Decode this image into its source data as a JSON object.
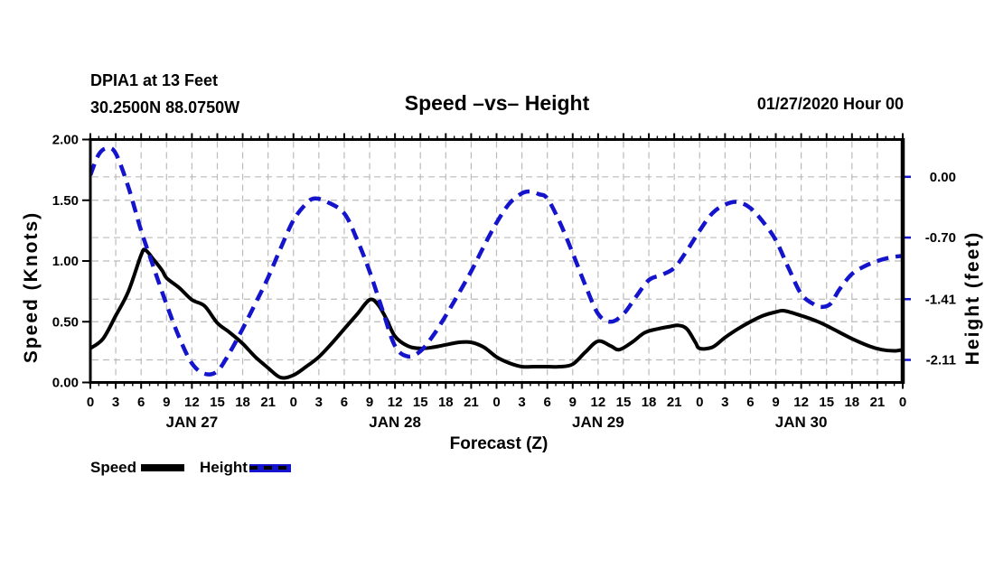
{
  "header": {
    "station_line1": "DPIA1 at 13 Feet",
    "station_line2": "30.2500N 88.0750W",
    "title": "Speed –vs– Height",
    "datetime": "01/27/2020 Hour 00"
  },
  "chart_data": {
    "type": "line",
    "title": "Speed –vs– Height",
    "xlabel": "Forecast (Z)",
    "grid": true,
    "grid_color": "#bbbbbb",
    "x_axis": {
      "hours_range": [
        0,
        96
      ],
      "major_tick_every_hours": 3,
      "minor_tick_every_hours": 1,
      "hour_tick_labels": [
        "0",
        "3",
        "6",
        "9",
        "12",
        "15",
        "18",
        "21",
        "0",
        "3",
        "6",
        "9",
        "12",
        "15",
        "18",
        "21",
        "0",
        "3",
        "6",
        "9",
        "12",
        "15",
        "18",
        "21",
        "0",
        "3",
        "6",
        "9",
        "12",
        "15",
        "18",
        "21",
        "0"
      ],
      "day_labels": [
        {
          "label": "JAN 27",
          "hour": 12
        },
        {
          "label": "JAN 28",
          "hour": 36
        },
        {
          "label": "JAN 29",
          "hour": 60
        },
        {
          "label": "JAN 30",
          "hour": 84
        }
      ]
    },
    "left_axis": {
      "label": "Speed (Knots)",
      "min": 0.0,
      "max": 2.0,
      "ticks": [
        {
          "value": 0.0,
          "label": "0.00"
        },
        {
          "value": 0.5,
          "label": "0.50"
        },
        {
          "value": 1.0,
          "label": "1.00"
        },
        {
          "value": 1.5,
          "label": "1.50"
        },
        {
          "value": 2.0,
          "label": "2.00"
        }
      ],
      "gridline_values": [
        0.5,
        1.0,
        1.5
      ],
      "tick_color": "#000000"
    },
    "right_axis": {
      "label": "Height (feet)",
      "min": -2.37,
      "max": 0.43,
      "ticks": [
        {
          "value": 0.0,
          "label": "0.00"
        },
        {
          "value": -0.7,
          "label": "-0.70"
        },
        {
          "value": -1.41,
          "label": "-1.41"
        },
        {
          "value": -2.11,
          "label": "-2.11"
        }
      ],
      "gridline_values": [
        0.0,
        -0.7,
        -1.41,
        -2.11
      ],
      "tick_color": "#1414cc"
    },
    "series": [
      {
        "name": "Speed",
        "axis": "left",
        "units": "knots",
        "color": "#000000",
        "style": "solid",
        "points": [
          [
            0,
            0.28
          ],
          [
            1.5,
            0.36
          ],
          [
            3,
            0.55
          ],
          [
            4.5,
            0.75
          ],
          [
            6,
            1.05
          ],
          [
            6.5,
            1.09
          ],
          [
            7.5,
            1.01
          ],
          [
            8.5,
            0.92
          ],
          [
            9,
            0.86
          ],
          [
            10.5,
            0.78
          ],
          [
            12,
            0.68
          ],
          [
            13.5,
            0.63
          ],
          [
            15,
            0.49
          ],
          [
            16.5,
            0.41
          ],
          [
            18,
            0.32
          ],
          [
            19.5,
            0.21
          ],
          [
            21,
            0.12
          ],
          [
            22.5,
            0.04
          ],
          [
            24,
            0.06
          ],
          [
            25.5,
            0.13
          ],
          [
            27,
            0.21
          ],
          [
            28.5,
            0.32
          ],
          [
            30,
            0.44
          ],
          [
            31.5,
            0.56
          ],
          [
            33,
            0.68
          ],
          [
            34,
            0.64
          ],
          [
            35,
            0.52
          ],
          [
            36,
            0.38
          ],
          [
            37.5,
            0.3
          ],
          [
            39,
            0.28
          ],
          [
            40.5,
            0.29
          ],
          [
            42,
            0.31
          ],
          [
            43.5,
            0.33
          ],
          [
            45,
            0.33
          ],
          [
            46.5,
            0.29
          ],
          [
            48,
            0.21
          ],
          [
            49.5,
            0.16
          ],
          [
            51,
            0.13
          ],
          [
            52.5,
            0.13
          ],
          [
            54,
            0.13
          ],
          [
            55.5,
            0.13
          ],
          [
            57,
            0.15
          ],
          [
            58.5,
            0.25
          ],
          [
            60,
            0.34
          ],
          [
            61.5,
            0.3
          ],
          [
            62.5,
            0.27
          ],
          [
            64,
            0.33
          ],
          [
            65.5,
            0.41
          ],
          [
            67,
            0.44
          ],
          [
            68.5,
            0.46
          ],
          [
            69.5,
            0.47
          ],
          [
            70.5,
            0.44
          ],
          [
            71.5,
            0.33
          ],
          [
            72,
            0.28
          ],
          [
            73.5,
            0.29
          ],
          [
            75,
            0.37
          ],
          [
            76.5,
            0.44
          ],
          [
            78,
            0.5
          ],
          [
            79.5,
            0.55
          ],
          [
            81,
            0.58
          ],
          [
            82,
            0.59
          ],
          [
            84,
            0.55
          ],
          [
            86,
            0.5
          ],
          [
            87.5,
            0.45
          ],
          [
            90,
            0.36
          ],
          [
            92,
            0.3
          ],
          [
            93.5,
            0.27
          ],
          [
            95,
            0.26
          ],
          [
            96,
            0.27
          ]
        ]
      },
      {
        "name": "Height",
        "axis": "right",
        "units": "feet",
        "color": "#1414cc",
        "style": "dashed",
        "points": [
          [
            0,
            0.02
          ],
          [
            1,
            0.26
          ],
          [
            2,
            0.33
          ],
          [
            3,
            0.27
          ],
          [
            4.5,
            -0.12
          ],
          [
            6,
            -0.62
          ],
          [
            7.5,
            -1.05
          ],
          [
            9,
            -1.47
          ],
          [
            10.5,
            -1.85
          ],
          [
            12,
            -2.15
          ],
          [
            13.5,
            -2.27
          ],
          [
            15,
            -2.24
          ],
          [
            16.5,
            -2.02
          ],
          [
            18,
            -1.75
          ],
          [
            19.5,
            -1.46
          ],
          [
            21,
            -1.16
          ],
          [
            22.5,
            -0.82
          ],
          [
            24,
            -0.5
          ],
          [
            25.5,
            -0.31
          ],
          [
            26.5,
            -0.25
          ],
          [
            28,
            -0.29
          ],
          [
            30,
            -0.42
          ],
          [
            31.5,
            -0.72
          ],
          [
            33,
            -1.09
          ],
          [
            34.5,
            -1.53
          ],
          [
            36,
            -1.95
          ],
          [
            37.5,
            -2.07
          ],
          [
            39,
            -2.01
          ],
          [
            40.5,
            -1.83
          ],
          [
            42,
            -1.6
          ],
          [
            43.5,
            -1.35
          ],
          [
            45,
            -1.09
          ],
          [
            46.5,
            -0.8
          ],
          [
            48,
            -0.53
          ],
          [
            49.5,
            -0.31
          ],
          [
            51,
            -0.19
          ],
          [
            52,
            -0.17
          ],
          [
            53,
            -0.2
          ],
          [
            54,
            -0.25
          ],
          [
            55.5,
            -0.53
          ],
          [
            57,
            -0.88
          ],
          [
            58.5,
            -1.25
          ],
          [
            60,
            -1.58
          ],
          [
            61.5,
            -1.67
          ],
          [
            63,
            -1.58
          ],
          [
            64.5,
            -1.38
          ],
          [
            66,
            -1.19
          ],
          [
            67.5,
            -1.13
          ],
          [
            69,
            -1.05
          ],
          [
            70.5,
            -0.85
          ],
          [
            72,
            -0.62
          ],
          [
            73.5,
            -0.42
          ],
          [
            75,
            -0.32
          ],
          [
            76.5,
            -0.29
          ],
          [
            78,
            -0.36
          ],
          [
            79.5,
            -0.52
          ],
          [
            81,
            -0.73
          ],
          [
            82.5,
            -1.05
          ],
          [
            84,
            -1.35
          ],
          [
            85.5,
            -1.47
          ],
          [
            86.5,
            -1.5
          ],
          [
            87.5,
            -1.46
          ],
          [
            88.5,
            -1.3
          ],
          [
            90,
            -1.12
          ],
          [
            91.5,
            -1.03
          ],
          [
            93,
            -0.97
          ],
          [
            94.5,
            -0.93
          ],
          [
            96,
            -0.91
          ]
        ]
      }
    ]
  },
  "legend": {
    "items": [
      {
        "label": "Speed",
        "color": "#000000",
        "style": "solid"
      },
      {
        "label": "Height",
        "color": "#1414cc",
        "style": "dashed"
      }
    ]
  }
}
